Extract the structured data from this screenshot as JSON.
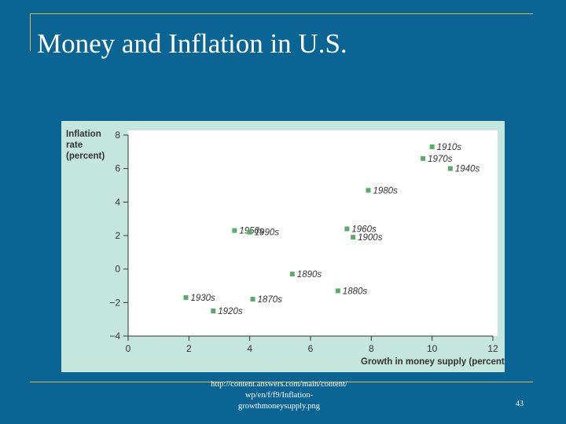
{
  "slide": {
    "title": "Money and Inflation in U.S.",
    "source_lines": [
      "http://content.answers.com/main/content/",
      "wp/en/f/f9/Inflation-",
      "growthmoneysupply.png"
    ],
    "page_number": "43"
  },
  "colors": {
    "background": "#0a6494",
    "accent_line": "#d7b94a",
    "panel": "#c5e6dc",
    "marker": "#5aab6a"
  },
  "chart_data": {
    "type": "scatter",
    "title": "",
    "ylabel_lines": [
      "Inflation",
      "rate",
      "(percent)"
    ],
    "xlabel": "Growth in money supply (percent)",
    "xlim": [
      0,
      12
    ],
    "ylim": [
      -4,
      8
    ],
    "xticks": [
      0,
      2,
      4,
      6,
      8,
      10,
      12
    ],
    "yticks": [
      -4,
      -2,
      0,
      2,
      4,
      6,
      8
    ],
    "ytick_labels": [
      "−4",
      "−2",
      "0",
      "2",
      "4",
      "6",
      "8"
    ],
    "grid": false,
    "points": [
      {
        "label": "1910s",
        "x": 10.0,
        "y": 7.3
      },
      {
        "label": "1970s",
        "x": 9.7,
        "y": 6.6
      },
      {
        "label": "1940s",
        "x": 10.6,
        "y": 6.0
      },
      {
        "label": "1980s",
        "x": 7.9,
        "y": 4.7
      },
      {
        "label": "1950s",
        "x": 3.5,
        "y": 2.3
      },
      {
        "label": "1990s",
        "x": 4.0,
        "y": 2.2
      },
      {
        "label": "1960s",
        "x": 7.2,
        "y": 2.4
      },
      {
        "label": "1900s",
        "x": 7.4,
        "y": 1.9
      },
      {
        "label": "1890s",
        "x": 5.4,
        "y": -0.3
      },
      {
        "label": "1880s",
        "x": 6.9,
        "y": -1.3
      },
      {
        "label": "1930s",
        "x": 1.9,
        "y": -1.7
      },
      {
        "label": "1870s",
        "x": 4.1,
        "y": -1.8
      },
      {
        "label": "1920s",
        "x": 2.8,
        "y": -2.5
      }
    ]
  }
}
